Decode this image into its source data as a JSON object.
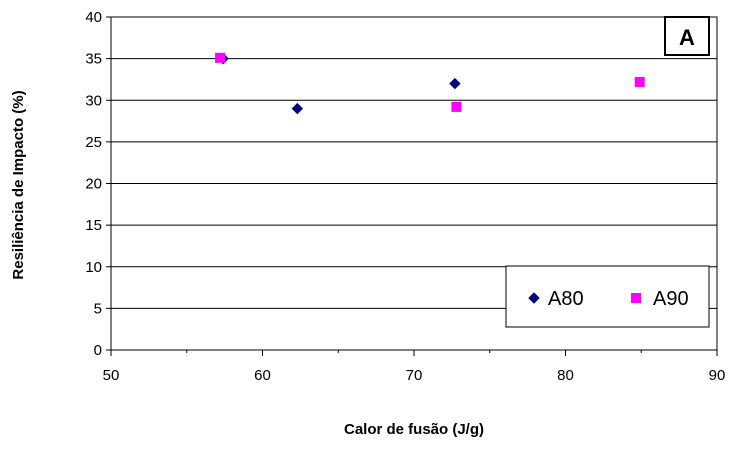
{
  "chart_data": {
    "type": "scatter",
    "title": "",
    "panel_label": "A",
    "xlabel": "Calor de fusão (J/g)",
    "ylabel": "Resiliência de Impacto (%)",
    "xlim": [
      50,
      90
    ],
    "ylim": [
      0,
      40
    ],
    "x_ticks": [
      "50",
      "60",
      "70",
      "80",
      "90"
    ],
    "y_ticks": [
      "0",
      "5",
      "10",
      "15",
      "20",
      "25",
      "30",
      "35",
      "40"
    ],
    "grid": {
      "horizontal": true,
      "vertical": false
    },
    "legend_position": "bottom-right",
    "series": [
      {
        "name": "A80",
        "marker": "diamond",
        "color": "#000080",
        "points": [
          {
            "x": 57.4,
            "y": 35.0
          },
          {
            "x": 62.3,
            "y": 29.0
          },
          {
            "x": 72.7,
            "y": 32.0
          }
        ]
      },
      {
        "name": "A90",
        "marker": "square",
        "color": "#ff00ff",
        "points": [
          {
            "x": 57.2,
            "y": 35.1
          },
          {
            "x": 72.8,
            "y": 29.2
          },
          {
            "x": 84.9,
            "y": 32.2
          }
        ]
      }
    ]
  }
}
